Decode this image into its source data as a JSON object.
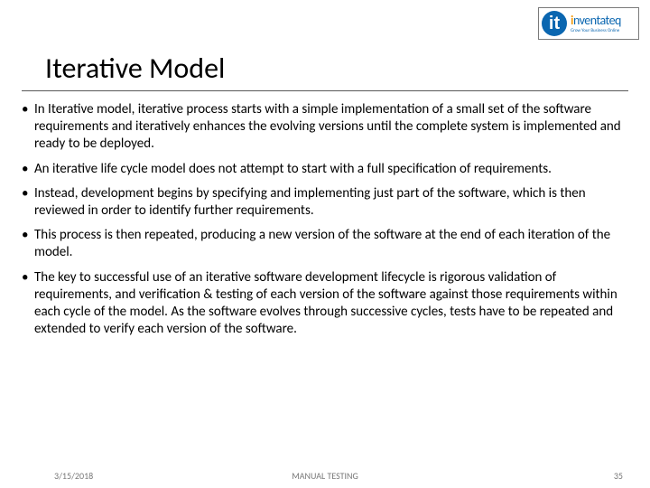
{
  "logo": {
    "mark_letter": "it",
    "mark_bg": "#0a66b0",
    "mark_fg": "#ffffff",
    "text_prefix": "i",
    "text_rest": "nventateq",
    "tagline": "Grow Your Business Online",
    "border_color": "#7a7a7a"
  },
  "title": "Iterative Model",
  "title_fontsize": 32,
  "rule_color": "#595959",
  "bullets": [
    "In Iterative model, iterative process starts with a simple implementation of a small set of the software requirements and iteratively enhances the evolving versions until the complete system is implemented and ready to be deployed.",
    "An iterative life cycle model does not attempt to start with a full specification of requirements.",
    "Instead, development begins by specifying and implementing just part of the software, which is then reviewed in order to identify further requirements.",
    "This process is then repeated, producing a new version of the software at the end of each iteration of the model.",
    "The key to successful use of an iterative software development lifecycle is rigorous validation of requirements, and verification & testing of each version of the software against those requirements within each cycle of the model. As the software evolves through successive cycles, tests have to be repeated and extended to verify each version of the software."
  ],
  "bullet_fontsize": 15,
  "footer": {
    "date": "3/15/2018",
    "center": "MANUAL TESTING",
    "page": "35",
    "color": "#777777",
    "fontsize": 10
  },
  "background_color": "#ffffff"
}
